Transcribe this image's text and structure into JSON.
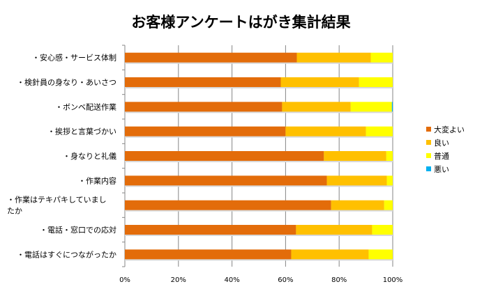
{
  "chart_data": {
    "type": "bar",
    "orientation": "horizontal",
    "stacked": "percent",
    "title": "お客様アンケートはがき集計結果",
    "categories": [
      "・安心感・サービス体制",
      "・検針員の身なり・あいさつ",
      "・ボンベ配送作業",
      "・挨拶と言葉づかい",
      "・身なりと礼儀",
      "・作業内容",
      "・作業はテキパキしていましたか",
      "・電話・窓口での応対",
      "・電話はすぐにつながったか"
    ],
    "series": [
      {
        "name": "大変よい",
        "color": "#E36C0A",
        "values": [
          64.2,
          58.2,
          58.7,
          60.0,
          74.3,
          75.4,
          77.0,
          63.9,
          62.1
        ]
      },
      {
        "name": "良い",
        "color": "#FFC000",
        "values": [
          27.6,
          29.2,
          25.6,
          30.0,
          23.3,
          22.4,
          19.8,
          28.4,
          28.9
        ]
      },
      {
        "name": "普通",
        "color": "#FFFF00",
        "values": [
          8.2,
          12.6,
          15.4,
          10.0,
          2.4,
          2.2,
          3.2,
          7.7,
          9.0
        ]
      },
      {
        "name": "悪い",
        "color": "#00B0F0",
        "values": [
          0,
          0,
          0.3,
          0,
          0,
          0,
          0,
          0,
          0
        ]
      }
    ],
    "xticks": [
      "0%",
      "20%",
      "40%",
      "60%",
      "80%",
      "100%"
    ],
    "xlim": [
      0,
      100
    ],
    "grid": true,
    "legend": "right"
  }
}
